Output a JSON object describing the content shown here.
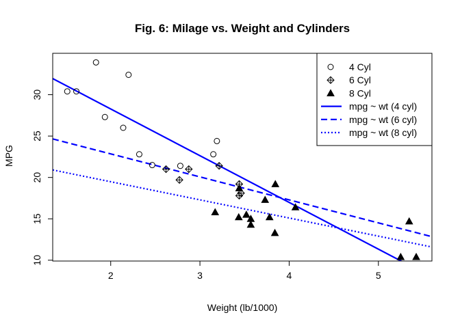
{
  "chart_data": {
    "type": "scatter",
    "title": "Fig. 6: Milage vs. Weight and Cylinders",
    "xlabel": "Weight (lb/1000)",
    "ylabel": "MPG",
    "xlim": [
      1.35,
      5.6
    ],
    "ylim": [
      9.9,
      35.0
    ],
    "xticks": [
      2,
      3,
      4,
      5
    ],
    "yticks": [
      10,
      15,
      20,
      25,
      30
    ],
    "grid": false,
    "legend_position": "top-right",
    "series": [
      {
        "name": "4 Cyl",
        "marker": "open-circle",
        "color": "#000000",
        "points": [
          {
            "x": 2.32,
            "y": 22.8
          },
          {
            "x": 3.19,
            "y": 24.4
          },
          {
            "x": 3.15,
            "y": 22.8
          },
          {
            "x": 2.2,
            "y": 32.4
          },
          {
            "x": 1.615,
            "y": 30.4
          },
          {
            "x": 1.835,
            "y": 33.9
          },
          {
            "x": 2.465,
            "y": 21.5
          },
          {
            "x": 1.935,
            "y": 27.3
          },
          {
            "x": 2.14,
            "y": 26.0
          },
          {
            "x": 1.513,
            "y": 30.4
          },
          {
            "x": 2.78,
            "y": 21.4
          }
        ]
      },
      {
        "name": "6 Cyl",
        "marker": "diamond-plus",
        "color": "#000000",
        "points": [
          {
            "x": 2.62,
            "y": 21.0
          },
          {
            "x": 2.875,
            "y": 21.0
          },
          {
            "x": 3.215,
            "y": 21.4
          },
          {
            "x": 3.46,
            "y": 18.1
          },
          {
            "x": 3.44,
            "y": 19.2
          },
          {
            "x": 3.44,
            "y": 17.8
          },
          {
            "x": 2.77,
            "y": 19.7
          }
        ]
      },
      {
        "name": "8 Cyl",
        "marker": "filled-triangle",
        "color": "#000000",
        "points": [
          {
            "x": 3.44,
            "y": 18.7
          },
          {
            "x": 3.57,
            "y": 14.3
          },
          {
            "x": 4.07,
            "y": 16.4
          },
          {
            "x": 3.73,
            "y": 17.3
          },
          {
            "x": 3.78,
            "y": 15.2
          },
          {
            "x": 5.25,
            "y": 10.4
          },
          {
            "x": 5.424,
            "y": 10.4
          },
          {
            "x": 3.52,
            "y": 15.5
          },
          {
            "x": 3.435,
            "y": 15.2
          },
          {
            "x": 3.84,
            "y": 13.3
          },
          {
            "x": 3.845,
            "y": 19.2
          },
          {
            "x": 3.17,
            "y": 15.8
          },
          {
            "x": 3.57,
            "y": 15.0
          },
          {
            "x": 5.345,
            "y": 14.7
          }
        ]
      }
    ],
    "fit_lines": [
      {
        "name": "mpg ~ wt (4 cyl)",
        "intercept": 39.571,
        "slope": -5.647,
        "color": "#0000ff",
        "dash": "solid"
      },
      {
        "name": "mpg ~ wt (6 cyl)",
        "intercept": 28.409,
        "slope": -2.78,
        "color": "#0000ff",
        "dash": "dashed"
      },
      {
        "name": "mpg ~ wt (8 cyl)",
        "intercept": 23.868,
        "slope": -2.192,
        "color": "#0000ff",
        "dash": "dotted"
      }
    ]
  }
}
